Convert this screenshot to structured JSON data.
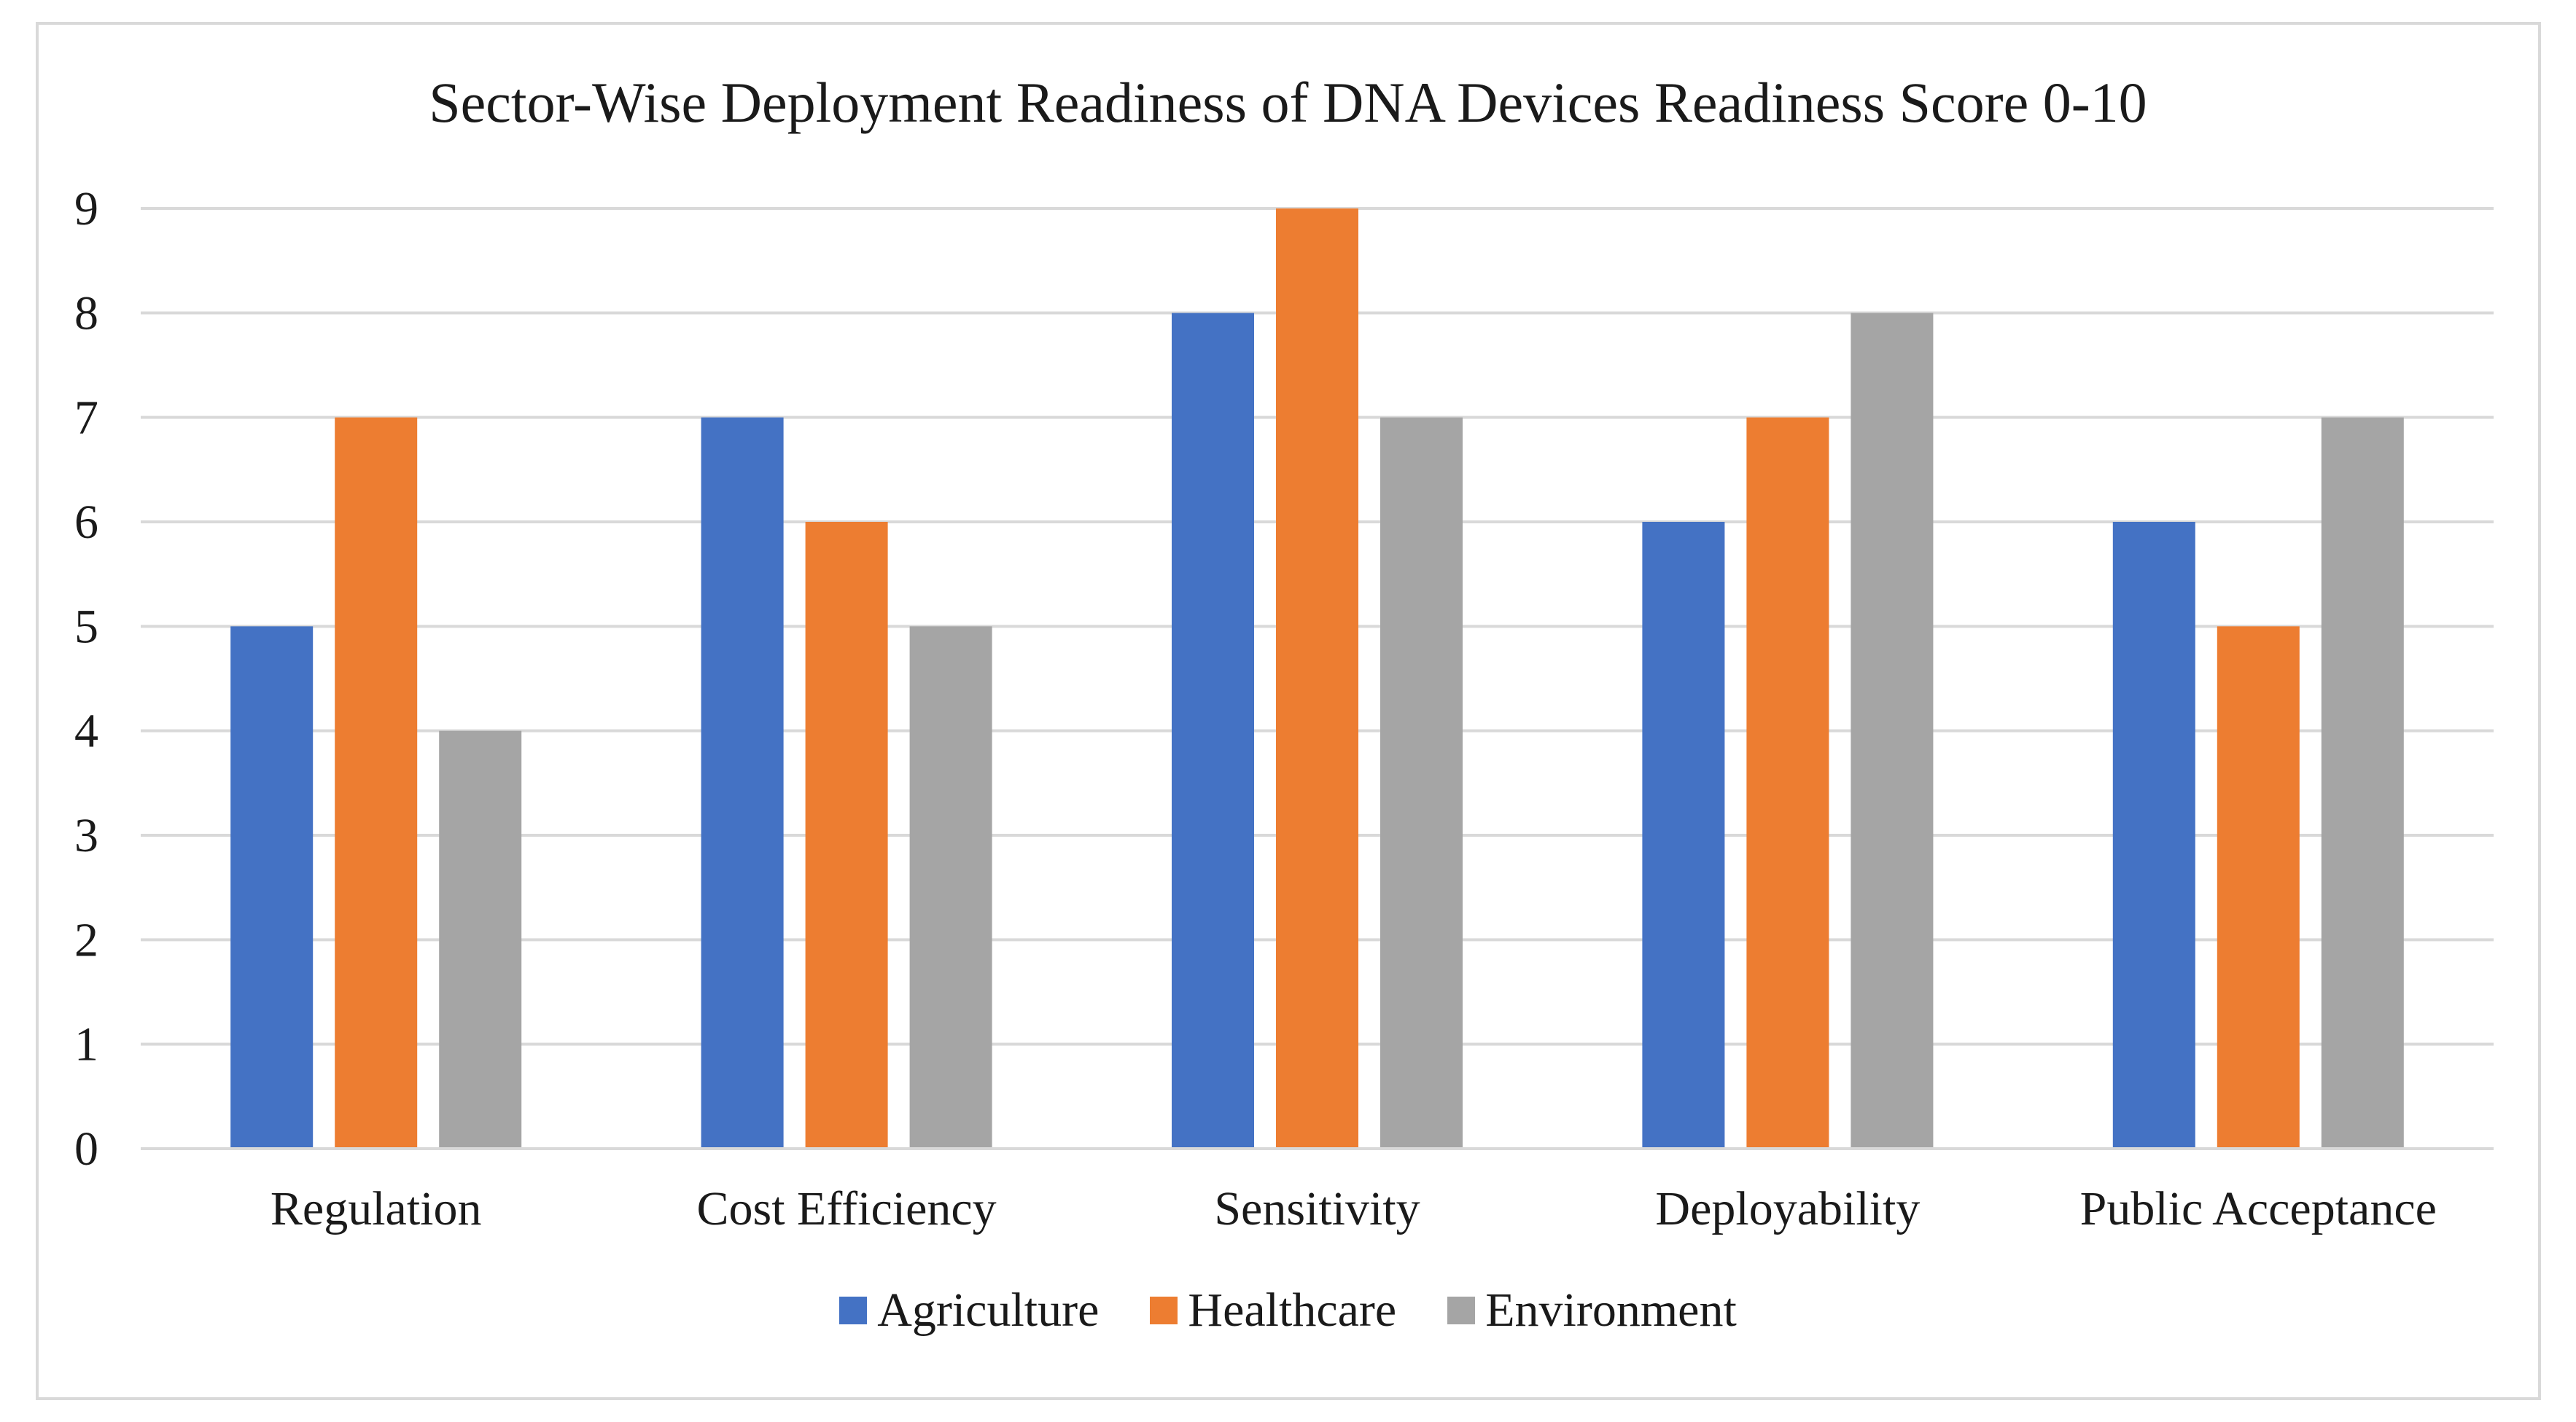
{
  "chart_data": {
    "type": "bar",
    "title": "Sector-Wise Deployment Readiness of DNA Devices Readiness Score 0-10",
    "xlabel": "",
    "ylabel": "",
    "ylim": [
      0,
      9
    ],
    "yticks": [
      0,
      1,
      2,
      3,
      4,
      5,
      6,
      7,
      8,
      9
    ],
    "grid": true,
    "legend_position": "bottom",
    "categories": [
      "Regulation",
      "Cost Efficiency",
      "Sensitivity",
      "Deployability",
      "Public Acceptance"
    ],
    "series": [
      {
        "name": "Agriculture",
        "color": "#4472c4",
        "values": [
          5,
          7,
          8,
          6,
          6
        ]
      },
      {
        "name": "Healthcare",
        "color": "#ed7d31",
        "values": [
          7,
          6,
          9,
          7,
          5
        ]
      },
      {
        "name": "Environment",
        "color": "#a5a5a5",
        "values": [
          4,
          5,
          7,
          8,
          7
        ]
      }
    ]
  }
}
